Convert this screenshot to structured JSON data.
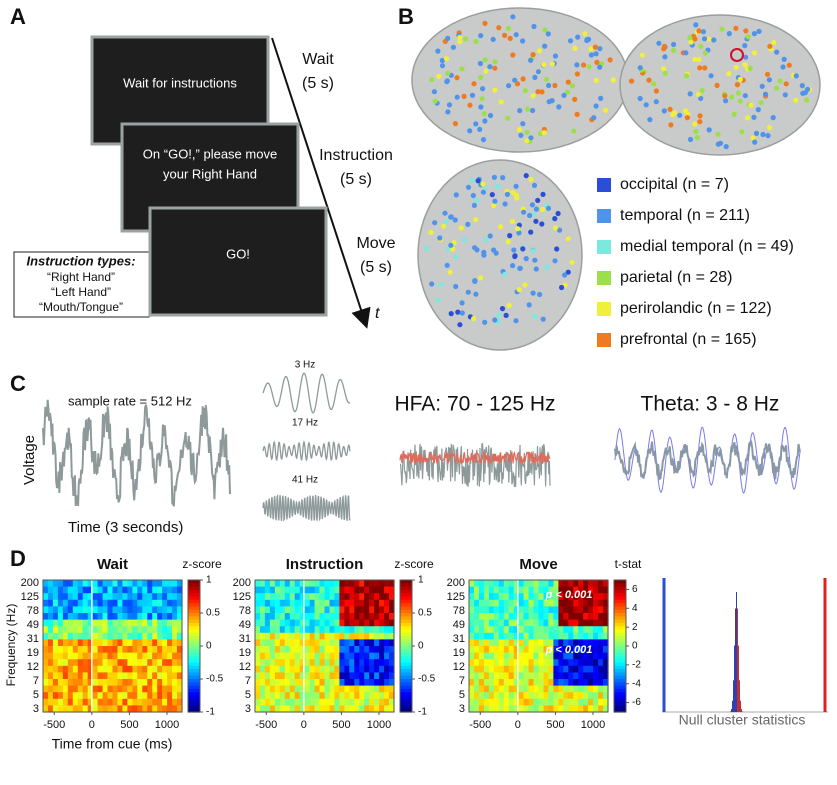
{
  "panel_a": {
    "label": "A",
    "screens": [
      [
        "Wait for instructions"
      ],
      [
        "On “GO!,” please move",
        "your Right Hand"
      ],
      [
        "GO!"
      ]
    ],
    "phases": [
      [
        "Wait",
        "(5 s)"
      ],
      [
        "Instruction",
        "(5 s)"
      ],
      [
        "Move",
        "(5 s)"
      ]
    ],
    "time_label": "t",
    "instruction_box": {
      "title": "Instruction types:",
      "items": [
        "“Right Hand”",
        "“Left Hand”",
        "“Mouth/Tongue”"
      ]
    }
  },
  "panel_b": {
    "label": "B",
    "regions": [
      {
        "name": "occipital (n = 7)",
        "color": "#2a4fd6"
      },
      {
        "name": "temporal (n = 211)",
        "color": "#4f93ea"
      },
      {
        "name": "medial temporal (n = 49)",
        "color": "#7de8df"
      },
      {
        "name": "parietal (n = 28)",
        "color": "#9be04a"
      },
      {
        "name": "perirolandic (n = 122)",
        "color": "#f0f03a"
      },
      {
        "name": "prefrontal (n = 165)",
        "color": "#f07a1e"
      }
    ]
  },
  "panel_c": {
    "label": "C",
    "sample_rate": "sample rate = 512 Hz",
    "y_label": "Voltage",
    "x_label": "Time (3 seconds)",
    "bands": [
      "3 Hz",
      "17 Hz",
      "41 Hz"
    ],
    "hfa": "HFA: 70 - 125 Hz",
    "theta": "Theta: 3 - 8 Hz"
  },
  "panel_d": {
    "label": "D",
    "y_label": "Frequency (Hz)",
    "x_label": "Time from cue (ms)",
    "yticks": [
      200,
      125,
      78,
      49,
      31,
      19,
      12,
      7,
      5,
      3
    ],
    "xlim": [
      -650,
      1200
    ],
    "xticks": [
      -500,
      0,
      500,
      1000
    ],
    "heatmaps": [
      {
        "title": "Wait",
        "colorbar_label": "z-score",
        "colorbar_lim": [
          -1,
          1
        ],
        "colorbar_ticks": [
          1,
          0.5,
          0,
          -0.5,
          -1
        ],
        "annotations": []
      },
      {
        "title": "Instruction",
        "colorbar_label": "z-score",
        "colorbar_lim": [
          -1,
          1
        ],
        "colorbar_ticks": [
          1,
          0.5,
          0,
          -0.5,
          -1
        ],
        "annotations": []
      },
      {
        "title": "Move",
        "colorbar_label": "t-stat",
        "colorbar_lim": [
          -7,
          7
        ],
        "colorbar_ticks": [
          6,
          4,
          2,
          0,
          -2,
          -4,
          -6
        ],
        "annotations": [
          "p < 0.001",
          "p < 0.001"
        ]
      }
    ],
    "null_label": "Null cluster statistics"
  }
}
